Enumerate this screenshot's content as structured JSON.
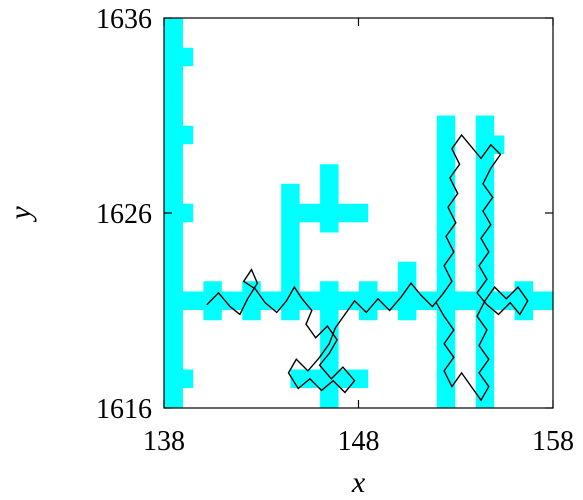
{
  "chart_data": {
    "type": "scatter",
    "title": "",
    "xlabel": "x",
    "ylabel": "y",
    "xlim": [
      138,
      158
    ],
    "ylim": [
      1616,
      1636
    ],
    "xticks": [
      138,
      148,
      158
    ],
    "yticks": [
      1616,
      1626,
      1636
    ],
    "xtick_labels": [
      "138",
      "148",
      "158"
    ],
    "ytick_labels": [
      "1616",
      "1626",
      "1636"
    ],
    "grid": false,
    "legend": "none",
    "colors": {
      "lattice": "#00ffff",
      "path": "#000000",
      "frame": "#000000"
    },
    "lattice_segments": [
      {
        "from": [
          138.5,
          1616
        ],
        "to": [
          138.5,
          1636
        ]
      },
      {
        "from": [
          138.5,
          1634
        ],
        "to": [
          139.5,
          1634
        ]
      },
      {
        "from": [
          138.5,
          1630
        ],
        "to": [
          139.5,
          1630
        ]
      },
      {
        "from": [
          138.5,
          1626
        ],
        "to": [
          139.5,
          1626
        ]
      },
      {
        "from": [
          138.5,
          1617.5
        ],
        "to": [
          139.5,
          1617.5
        ]
      },
      {
        "from": [
          138.5,
          1621.5
        ],
        "to": [
          158,
          1621.5
        ]
      },
      {
        "from": [
          140.5,
          1620.5
        ],
        "to": [
          140.5,
          1622.5
        ]
      },
      {
        "from": [
          142.5,
          1620.5
        ],
        "to": [
          142.5,
          1622.5
        ]
      },
      {
        "from": [
          144.5,
          1620.5
        ],
        "to": [
          144.5,
          1627.5
        ]
      },
      {
        "from": [
          144.5,
          1626
        ],
        "to": [
          148.5,
          1626
        ]
      },
      {
        "from": [
          146.5,
          1625
        ],
        "to": [
          146.5,
          1628.5
        ]
      },
      {
        "from": [
          146.5,
          1616
        ],
        "to": [
          146.5,
          1622.5
        ]
      },
      {
        "from": [
          144.5,
          1617.5
        ],
        "to": [
          148.5,
          1617.5
        ]
      },
      {
        "from": [
          148.5,
          1620.5
        ],
        "to": [
          148.5,
          1622.5
        ]
      },
      {
        "from": [
          150.5,
          1620.5
        ],
        "to": [
          150.5,
          1623.5
        ]
      },
      {
        "from": [
          152.5,
          1616
        ],
        "to": [
          152.5,
          1631
        ]
      },
      {
        "from": [
          154.5,
          1616
        ],
        "to": [
          154.5,
          1631
        ]
      },
      {
        "from": [
          154.5,
          1629.5
        ],
        "to": [
          155.5,
          1629.5
        ]
      },
      {
        "from": [
          156.5,
          1620.5
        ],
        "to": [
          156.5,
          1622.5
        ]
      }
    ],
    "path_points": [
      [
        140.2,
        1621.3
      ],
      [
        140.8,
        1621.9
      ],
      [
        141.4,
        1621.2
      ],
      [
        141.9,
        1620.8
      ],
      [
        142.3,
        1621.6
      ],
      [
        142.8,
        1622.4
      ],
      [
        142.5,
        1623.1
      ],
      [
        142.1,
        1622.5
      ],
      [
        142.7,
        1622.1
      ],
      [
        143.2,
        1621.4
      ],
      [
        143.8,
        1620.9
      ],
      [
        144.3,
        1621.5
      ],
      [
        144.7,
        1622.2
      ],
      [
        145.1,
        1621.6
      ],
      [
        145.6,
        1621.0
      ],
      [
        145.3,
        1620.3
      ],
      [
        145.8,
        1619.6
      ],
      [
        146.4,
        1620.2
      ],
      [
        146.9,
        1619.5
      ],
      [
        146.5,
        1618.8
      ],
      [
        146.0,
        1618.2
      ],
      [
        146.6,
        1617.5
      ],
      [
        147.2,
        1618.1
      ],
      [
        147.8,
        1617.4
      ],
      [
        147.3,
        1616.8
      ],
      [
        146.7,
        1617.4
      ],
      [
        146.1,
        1616.9
      ],
      [
        145.5,
        1617.5
      ],
      [
        144.9,
        1617.0
      ],
      [
        144.4,
        1617.8
      ],
      [
        144.8,
        1618.5
      ],
      [
        145.4,
        1617.9
      ],
      [
        146.0,
        1618.6
      ],
      [
        146.5,
        1619.3
      ],
      [
        146.8,
        1620.1
      ],
      [
        147.3,
        1620.8
      ],
      [
        147.8,
        1621.5
      ],
      [
        148.4,
        1620.9
      ],
      [
        149.0,
        1621.6
      ],
      [
        149.6,
        1621.0
      ],
      [
        150.2,
        1621.7
      ],
      [
        150.7,
        1622.4
      ],
      [
        151.2,
        1621.8
      ],
      [
        151.8,
        1621.2
      ],
      [
        152.3,
        1621.8
      ],
      [
        152.8,
        1622.5
      ],
      [
        152.4,
        1623.3
      ],
      [
        152.9,
        1624.0
      ],
      [
        152.5,
        1624.8
      ],
      [
        153.0,
        1625.5
      ],
      [
        152.6,
        1626.3
      ],
      [
        153.1,
        1627.0
      ],
      [
        152.7,
        1627.8
      ],
      [
        153.2,
        1628.5
      ],
      [
        152.8,
        1629.3
      ],
      [
        153.3,
        1630.0
      ],
      [
        153.8,
        1629.4
      ],
      [
        154.3,
        1628.8
      ],
      [
        154.8,
        1629.5
      ],
      [
        155.3,
        1629.0
      ],
      [
        154.8,
        1628.3
      ],
      [
        154.4,
        1627.5
      ],
      [
        154.9,
        1626.8
      ],
      [
        154.4,
        1626.1
      ],
      [
        154.8,
        1625.4
      ],
      [
        154.3,
        1624.7
      ],
      [
        154.7,
        1624.0
      ],
      [
        154.2,
        1623.3
      ],
      [
        154.6,
        1622.6
      ],
      [
        154.1,
        1621.9
      ],
      [
        154.6,
        1621.3
      ],
      [
        155.2,
        1620.8
      ],
      [
        155.8,
        1621.4
      ],
      [
        156.3,
        1620.8
      ],
      [
        156.7,
        1621.5
      ],
      [
        156.2,
        1622.2
      ],
      [
        155.6,
        1621.6
      ],
      [
        155.0,
        1622.2
      ],
      [
        154.5,
        1621.5
      ],
      [
        154.1,
        1620.7
      ],
      [
        154.6,
        1620.0
      ],
      [
        154.2,
        1619.2
      ],
      [
        154.7,
        1618.5
      ],
      [
        154.2,
        1617.8
      ],
      [
        154.7,
        1617.1
      ],
      [
        154.3,
        1616.4
      ],
      [
        153.8,
        1617.1
      ],
      [
        153.3,
        1617.8
      ],
      [
        152.8,
        1617.1
      ],
      [
        152.4,
        1617.9
      ],
      [
        152.9,
        1618.6
      ],
      [
        152.4,
        1619.3
      ],
      [
        152.9,
        1620.0
      ],
      [
        152.4,
        1620.7
      ],
      [
        152.0,
        1621.4
      ]
    ]
  }
}
